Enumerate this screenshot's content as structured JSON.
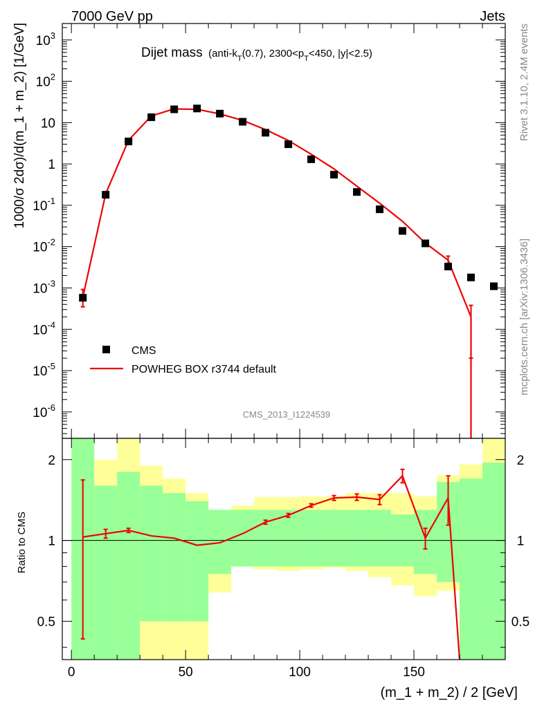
{
  "header": {
    "left": "7000 GeV pp",
    "right": "Jets"
  },
  "side": {
    "rivet": "Rivet 3.1.10,  2.4M events",
    "mcplots": "mcplots.cern.ch [arXiv:1306.3436]"
  },
  "title": {
    "main": "Dijet mass",
    "sub_pre": "(anti-k",
    "sub_T1": "T",
    "sub_mid": "(0.7), 2300<p",
    "sub_T2": "T",
    "sub_post": "<450, |y|<2.5)"
  },
  "analysis_id": "CMS_2013_I1224539",
  "legend": {
    "data_label": "CMS",
    "mc_label": "POWHEG BOX r3744 default"
  },
  "colors": {
    "mc": "#ee0000",
    "band_green": "#99ff99",
    "band_yellow": "#ffff99",
    "data": "#000000"
  },
  "chart_data": [
    {
      "type": "scatter",
      "panel": "main",
      "xlabel": "(m_1 + m_2) / 2 [GeV]",
      "ylabel": "1000/σ 2dσ)/d(m_1 + m_2) [1/GeV]",
      "yscale": "log",
      "xlim": [
        -4,
        190
      ],
      "ylim": [
        2.3e-07,
        2500
      ],
      "y_tick_labels": [
        {
          "base": "10",
          "exp": "-6"
        },
        {
          "base": "10",
          "exp": "-5"
        },
        {
          "base": "10",
          "exp": "-4"
        },
        {
          "base": "10",
          "exp": "-3"
        },
        {
          "base": "10",
          "exp": "-2"
        },
        {
          "base": "10",
          "exp": "-1"
        },
        {
          "base": "1",
          "exp": ""
        },
        {
          "base": "10",
          "exp": ""
        },
        {
          "base": "10",
          "exp": "2"
        },
        {
          "base": "10",
          "exp": "3"
        }
      ],
      "series": [
        {
          "name": "CMS",
          "x": [
            5,
            15,
            25,
            35,
            45,
            55,
            65,
            75,
            85,
            95,
            105,
            115,
            125,
            135,
            145,
            155,
            165,
            175,
            185
          ],
          "y": [
            0.00058,
            0.18,
            3.5,
            13.5,
            21,
            22,
            16.5,
            10.5,
            5.7,
            3.0,
            1.3,
            0.55,
            0.21,
            0.08,
            0.024,
            0.012,
            0.0033,
            0.0018,
            0.0011
          ]
        },
        {
          "name": "POWHEG BOX r3744 default",
          "x": [
            5,
            15,
            25,
            35,
            45,
            55,
            65,
            75,
            85,
            95,
            105,
            115,
            125,
            135,
            145,
            155,
            165,
            175
          ],
          "y": [
            0.0006,
            0.19,
            3.75,
            14.5,
            21.5,
            21,
            16.3,
            11.3,
            6.8,
            3.7,
            1.72,
            0.76,
            0.29,
            0.112,
            0.041,
            0.0122,
            0.0047,
            0.0002
          ],
          "err_low": [
            0.00025,
            0,
            0,
            0,
            0,
            0,
            0,
            0,
            0,
            0,
            0,
            0,
            0,
            0,
            0,
            0,
            0.0012,
            0.00018
          ],
          "err_high": [
            0.00032,
            0,
            0,
            0,
            0,
            0,
            0,
            0,
            0,
            0,
            0,
            0,
            0,
            0,
            0,
            0,
            0.0012,
            0.00018
          ]
        }
      ]
    },
    {
      "type": "line",
      "panel": "ratio",
      "xlabel": "(m_1 + m_2) / 2 [GeV]",
      "ylabel": "Ratio to CMS",
      "yscale": "log",
      "xlim": [
        -4,
        190
      ],
      "ylim": [
        0.36,
        2.4
      ],
      "x_ticks": [
        0,
        50,
        100,
        150
      ],
      "y_ticks": [
        0.5,
        1,
        2
      ],
      "bands": {
        "edges": [
          0,
          10,
          20,
          30,
          40,
          50,
          60,
          70,
          80,
          90,
          100,
          110,
          120,
          130,
          140,
          150,
          160,
          170,
          180,
          190
        ],
        "green_lo": [
          0.36,
          0.36,
          0.36,
          0.5,
          0.5,
          0.5,
          0.75,
          0.8,
          0.8,
          0.8,
          0.8,
          0.8,
          0.8,
          0.8,
          0.8,
          0.75,
          0.7,
          0.36,
          0.36
        ],
        "green_hi": [
          2.4,
          1.6,
          1.8,
          1.6,
          1.5,
          1.4,
          1.3,
          1.3,
          1.3,
          1.3,
          1.3,
          1.3,
          1.3,
          1.3,
          1.25,
          1.3,
          1.65,
          1.7,
          1.95
        ],
        "yellow_lo": [
          0.36,
          0.36,
          0.36,
          0.36,
          0.36,
          0.36,
          0.64,
          0.83,
          0.78,
          0.77,
          0.78,
          0.79,
          0.77,
          0.73,
          0.68,
          0.62,
          0.65,
          0.36,
          0.36
        ],
        "yellow_hi": [
          2.4,
          2.0,
          2.4,
          1.9,
          1.7,
          1.5,
          1.3,
          1.35,
          1.45,
          1.45,
          1.46,
          1.46,
          1.5,
          1.5,
          1.5,
          1.46,
          1.75,
          1.92,
          2.4
        ]
      },
      "series": [
        {
          "name": "POWHEG BOX r3744 default",
          "x": [
            5,
            15,
            25,
            35,
            45,
            55,
            65,
            75,
            85,
            95,
            105,
            115,
            125,
            135,
            145,
            155,
            165,
            170
          ],
          "y": [
            1.03,
            1.06,
            1.09,
            1.04,
            1.02,
            0.96,
            0.98,
            1.06,
            1.17,
            1.24,
            1.35,
            1.44,
            1.45,
            1.42,
            1.74,
            1.02,
            1.44,
            0.36
          ],
          "err_low": [
            0.6,
            0.04,
            0.02,
            0,
            0,
            0,
            0,
            0,
            0.02,
            0.02,
            0.02,
            0.03,
            0.04,
            0.06,
            0.1,
            0.09,
            0.3,
            0
          ],
          "err_high": [
            0.65,
            0.04,
            0.02,
            0,
            0,
            0,
            0,
            0,
            0.02,
            0.02,
            0.02,
            0.03,
            0.04,
            0.06,
            0.1,
            0.09,
            0.3,
            0
          ]
        }
      ]
    }
  ]
}
